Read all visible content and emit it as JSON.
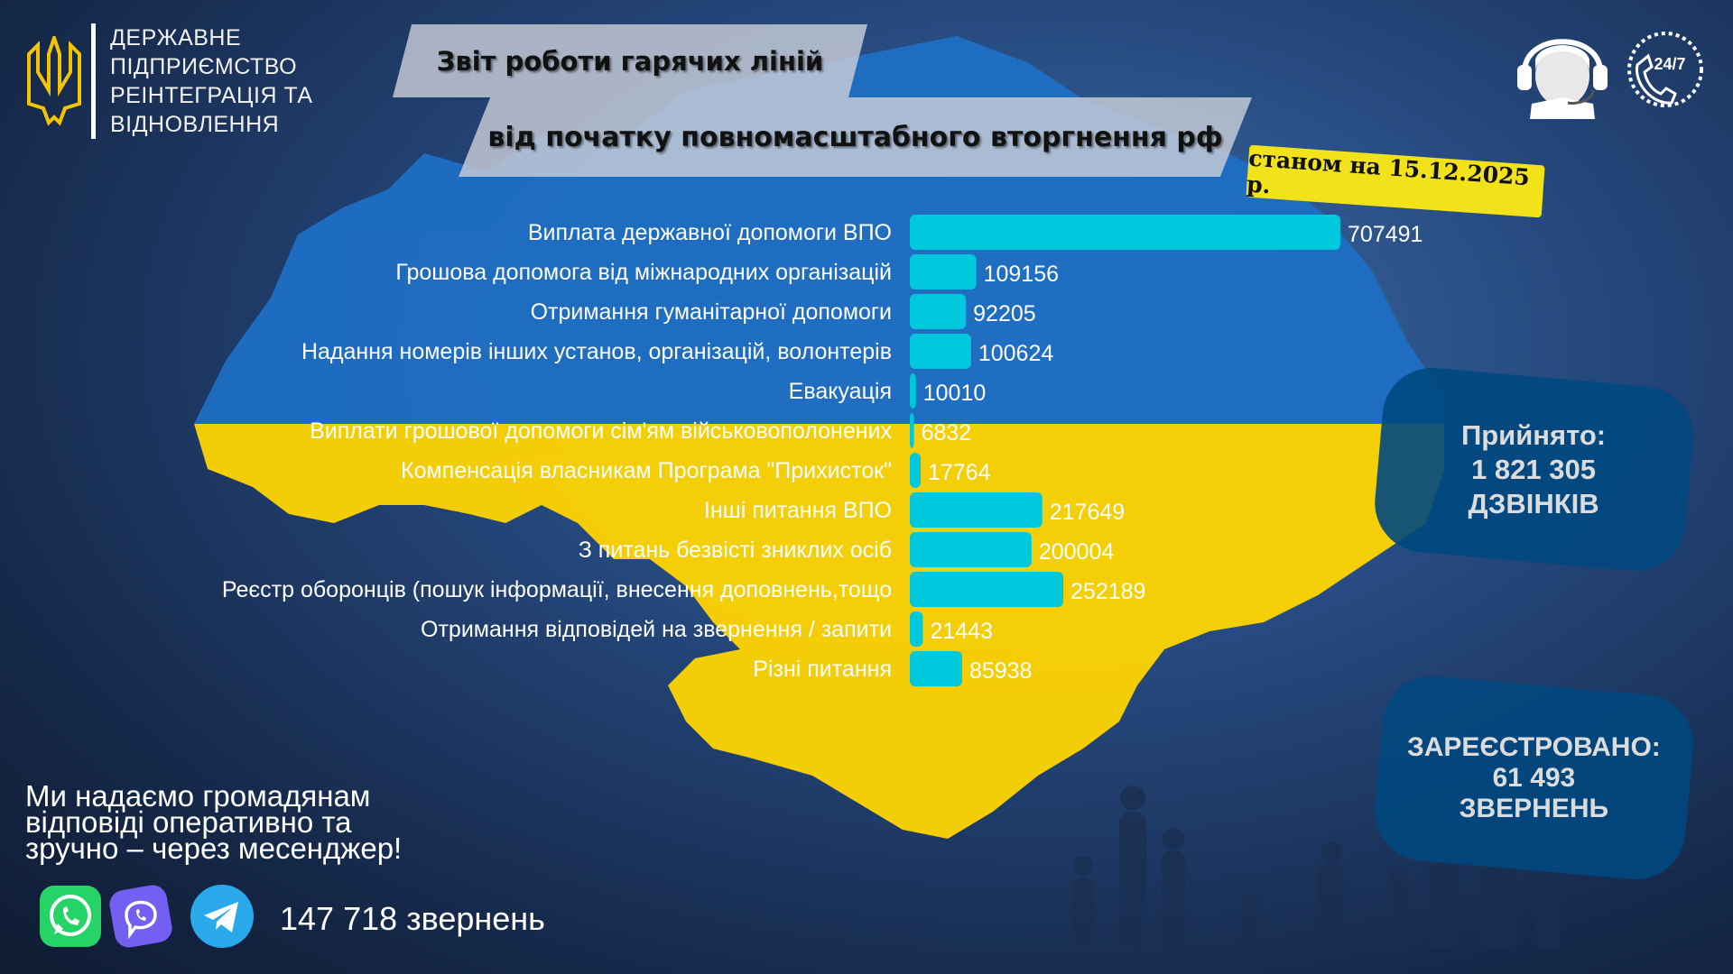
{
  "organization": {
    "lines": [
      "ДЕРЖАВНЕ",
      "ПІДПРИЄМСТВО",
      "РЕІНТЕГРАЦІЯ ТА",
      "ВІДНОВЛЕННЯ"
    ],
    "logo": "trident-icon"
  },
  "header": {
    "title": "Звіт роботи гарячих ліній",
    "subtitle": "від початку повномасштабного вторгнення рф",
    "date": "станом на 15.12.2025 р."
  },
  "icons": {
    "operator": "headset-operator-icon",
    "support": "phone-24-7-icon",
    "support_label": "24/7"
  },
  "colors": {
    "bar": "#00c8dc",
    "flag_blue": "#1f6fc4",
    "flag_yellow": "#ffd500",
    "stat_box": "#004880"
  },
  "chart_data": {
    "type": "bar",
    "orientation": "horizontal",
    "categories": [
      "Виплата державної допомоги ВПО",
      "Грошова допомога від міжнародних організацій",
      "Отримання гуманітарної допомоги",
      "Надання номерів інших установ, організацій, волонтерів",
      "Евакуація",
      "Виплати грошової допомоги сім'ям військовополонених",
      "Компенсація власникам Програма \"Прихисток\"",
      "Інші питання ВПО",
      "З питань безвісті зниклих осіб",
      "Реєстр оборонців (пошук інформації, внесення доповнень,тощо",
      "Отримання відповідей на звернення / запити",
      "Різні питання"
    ],
    "values": [
      707491,
      109156,
      92205,
      100624,
      10010,
      6832,
      17764,
      217649,
      200004,
      252189,
      21443,
      85938
    ],
    "data_labels": true,
    "grid": false
  },
  "stats": {
    "accepted": {
      "label": "Прийнято:",
      "value": "1 821 305",
      "unit": "ДЗВІНКІВ"
    },
    "registered": {
      "label": "ЗАРЕЄСТРОВАНО:",
      "value": "61 493",
      "unit": "ЗВЕРНЕНЬ"
    }
  },
  "messengers": {
    "tagline": [
      "Ми надаємо громадянам",
      "відповіді оперативно та",
      "зручно – через месенджер!"
    ],
    "apps": [
      "whatsapp-icon",
      "viber-icon",
      "telegram-icon"
    ],
    "count": "147 718 звернень"
  }
}
